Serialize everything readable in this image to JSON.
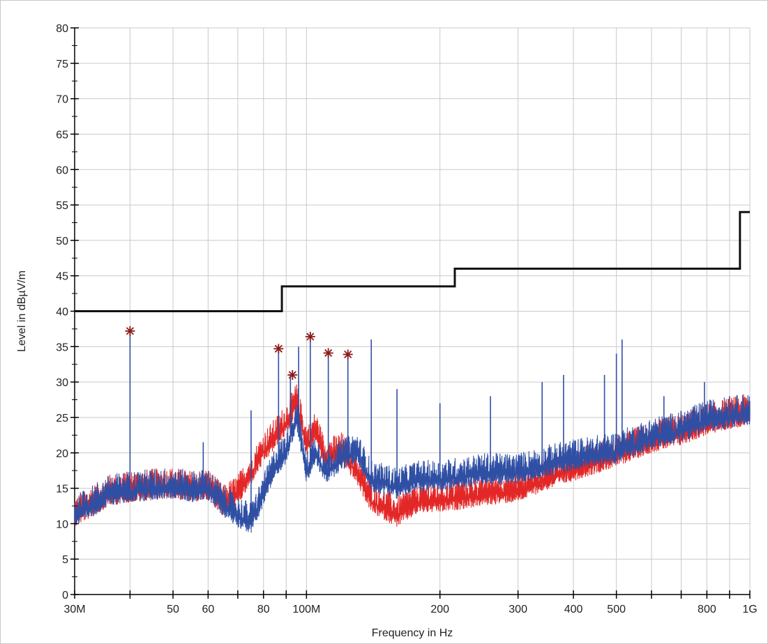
{
  "chart_data": {
    "type": "line",
    "xlabel": "Frequency in Hz",
    "ylabel": "Level in dBµV/m",
    "x_scale": "log",
    "xlim": [
      30000000,
      1000000000
    ],
    "ylim": [
      0,
      80
    ],
    "grid": true,
    "x_ticks": [
      {
        "value": 30000000,
        "label": "30M"
      },
      {
        "value": 50000000,
        "label": "50"
      },
      {
        "value": 60000000,
        "label": "60"
      },
      {
        "value": 80000000,
        "label": "80"
      },
      {
        "value": 100000000,
        "label": "100M"
      },
      {
        "value": 200000000,
        "label": "200"
      },
      {
        "value": 300000000,
        "label": "300"
      },
      {
        "value": 400000000,
        "label": "400"
      },
      {
        "value": 500000000,
        "label": "500"
      },
      {
        "value": 800000000,
        "label": "800"
      },
      {
        "value": 1000000000,
        "label": "1G"
      }
    ],
    "x_minor_ticks": [
      40000000,
      70000000,
      90000000,
      600000000,
      700000000,
      900000000
    ],
    "y_ticks": [
      {
        "value": 0,
        "label": "0"
      },
      {
        "value": 5,
        "label": "5"
      },
      {
        "value": 10,
        "label": "10"
      },
      {
        "value": 15,
        "label": "15"
      },
      {
        "value": 20,
        "label": "20"
      },
      {
        "value": 25,
        "label": "25"
      },
      {
        "value": 30,
        "label": "30"
      },
      {
        "value": 35,
        "label": "35"
      },
      {
        "value": 40,
        "label": "40"
      },
      {
        "value": 45,
        "label": "45"
      },
      {
        "value": 50,
        "label": "50"
      },
      {
        "value": 55,
        "label": "55"
      },
      {
        "value": 60,
        "label": "60"
      },
      {
        "value": 65,
        "label": "65"
      },
      {
        "value": 70,
        "label": "70"
      },
      {
        "value": 75,
        "label": "75"
      },
      {
        "value": 80,
        "label": "80"
      }
    ],
    "series": [
      {
        "color": "#e32626",
        "points": [
          [
            30000000,
            11
          ],
          [
            33000000,
            12.5
          ],
          [
            36000000,
            14
          ],
          [
            40000000,
            14.5
          ],
          [
            45000000,
            14.8
          ],
          [
            50000000,
            15
          ],
          [
            55000000,
            14.5
          ],
          [
            60000000,
            14.8
          ],
          [
            65000000,
            12.5
          ],
          [
            70000000,
            14
          ],
          [
            75000000,
            17
          ],
          [
            80000000,
            20
          ],
          [
            85000000,
            22
          ],
          [
            90000000,
            24
          ],
          [
            95000000,
            27
          ],
          [
            100000000,
            21
          ],
          [
            105000000,
            23
          ],
          [
            110000000,
            19
          ],
          [
            120000000,
            20
          ],
          [
            130000000,
            17
          ],
          [
            140000000,
            13
          ],
          [
            160000000,
            11
          ],
          [
            180000000,
            13
          ],
          [
            200000000,
            13
          ],
          [
            250000000,
            14
          ],
          [
            300000000,
            14.5
          ],
          [
            340000000,
            16
          ],
          [
            400000000,
            17.5
          ],
          [
            500000000,
            19.5
          ],
          [
            600000000,
            21.5
          ],
          [
            700000000,
            22.5
          ],
          [
            800000000,
            24
          ],
          [
            900000000,
            24.8
          ],
          [
            1000000000,
            25.5
          ]
        ]
      },
      {
        "color": "#2f4fa4",
        "points": [
          [
            30000000,
            11
          ],
          [
            33000000,
            12.5
          ],
          [
            36000000,
            14
          ],
          [
            40000000,
            14.5
          ],
          [
            45000000,
            14.8
          ],
          [
            50000000,
            15
          ],
          [
            55000000,
            14.5
          ],
          [
            60000000,
            14.8
          ],
          [
            65000000,
            12.5
          ],
          [
            70000000,
            11
          ],
          [
            75000000,
            10
          ],
          [
            80000000,
            14
          ],
          [
            85000000,
            18
          ],
          [
            90000000,
            20
          ],
          [
            95000000,
            25
          ],
          [
            100000000,
            17
          ],
          [
            105000000,
            20
          ],
          [
            110000000,
            17
          ],
          [
            120000000,
            19
          ],
          [
            130000000,
            20
          ],
          [
            140000000,
            16
          ],
          [
            160000000,
            15
          ],
          [
            180000000,
            16
          ],
          [
            200000000,
            16
          ],
          [
            250000000,
            17
          ],
          [
            300000000,
            17
          ],
          [
            340000000,
            18
          ],
          [
            400000000,
            19
          ],
          [
            500000000,
            20
          ],
          [
            600000000,
            22
          ],
          [
            700000000,
            23
          ],
          [
            800000000,
            24.5
          ],
          [
            900000000,
            25
          ],
          [
            1000000000,
            25.5
          ]
        ],
        "peaks": [
          [
            40000000,
            37
          ],
          [
            58500000,
            21.5
          ],
          [
            75000000,
            26
          ],
          [
            86500000,
            34.8
          ],
          [
            92000000,
            31
          ],
          [
            96000000,
            35
          ],
          [
            102000000,
            37
          ],
          [
            112000000,
            34
          ],
          [
            124000000,
            34
          ],
          [
            140000000,
            36
          ],
          [
            160000000,
            29
          ],
          [
            200000000,
            27
          ],
          [
            260000000,
            28
          ],
          [
            340000000,
            30
          ],
          [
            380000000,
            31
          ],
          [
            470000000,
            31
          ],
          [
            500000000,
            34
          ],
          [
            515000000,
            36
          ],
          [
            640000000,
            28
          ],
          [
            790000000,
            30
          ],
          [
            900000000,
            28
          ]
        ]
      }
    ],
    "limit_line": {
      "color": "#111111",
      "points": [
        [
          30000000,
          40
        ],
        [
          88000000,
          40
        ],
        [
          88000000,
          43.5
        ],
        [
          216000000,
          43.5
        ],
        [
          216000000,
          46
        ],
        [
          950000000,
          46
        ],
        [
          950000000,
          54
        ],
        [
          1000000000,
          54
        ]
      ]
    },
    "markers": {
      "color": "#8b1a1a",
      "points": [
        [
          40000000,
          37.2
        ],
        [
          86500000,
          34.7
        ],
        [
          93000000,
          31
        ],
        [
          102000000,
          36.4
        ],
        [
          112000000,
          34.1
        ],
        [
          124000000,
          33.9
        ]
      ]
    }
  }
}
